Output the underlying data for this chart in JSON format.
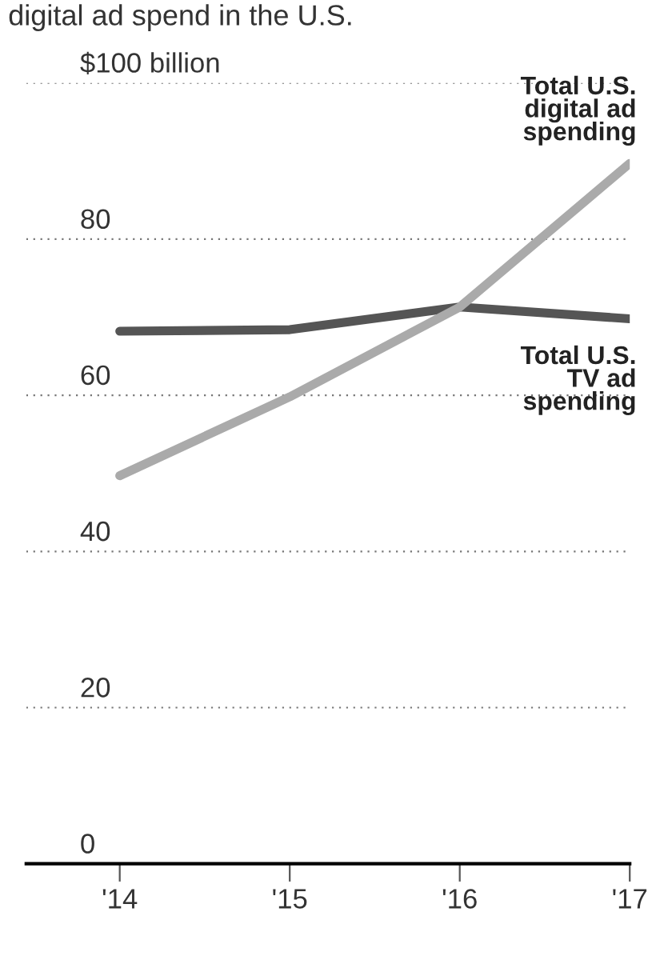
{
  "chart_data": {
    "type": "line",
    "title": "digital ad spend in the U.S.",
    "x": [
      2014,
      2015,
      2016,
      2017
    ],
    "series": [
      {
        "name": "Total U.S. TV ad spending",
        "color": "#555555",
        "values": [
          68.2,
          68.4,
          71.3,
          69.8
        ]
      },
      {
        "name": "Total U.S. digital ad spending",
        "color": "#aaaaaa",
        "values": [
          49.7,
          59.8,
          71.3,
          89.7
        ]
      }
    ],
    "xlim": [
      2013.45,
      2017
    ],
    "xticks": [
      {
        "value": 2014,
        "label": "'14"
      },
      {
        "value": 2015,
        "label": "'15"
      },
      {
        "value": 2016,
        "label": "'16"
      },
      {
        "value": 2017,
        "label": "'17"
      }
    ],
    "ylim": [
      0,
      100
    ],
    "yticks": [
      0,
      20,
      40,
      60,
      80,
      {
        "value": 100,
        "label": "$100 billion"
      }
    ],
    "grid": "y",
    "legend": false,
    "marker": "none",
    "line_style": "solid"
  }
}
